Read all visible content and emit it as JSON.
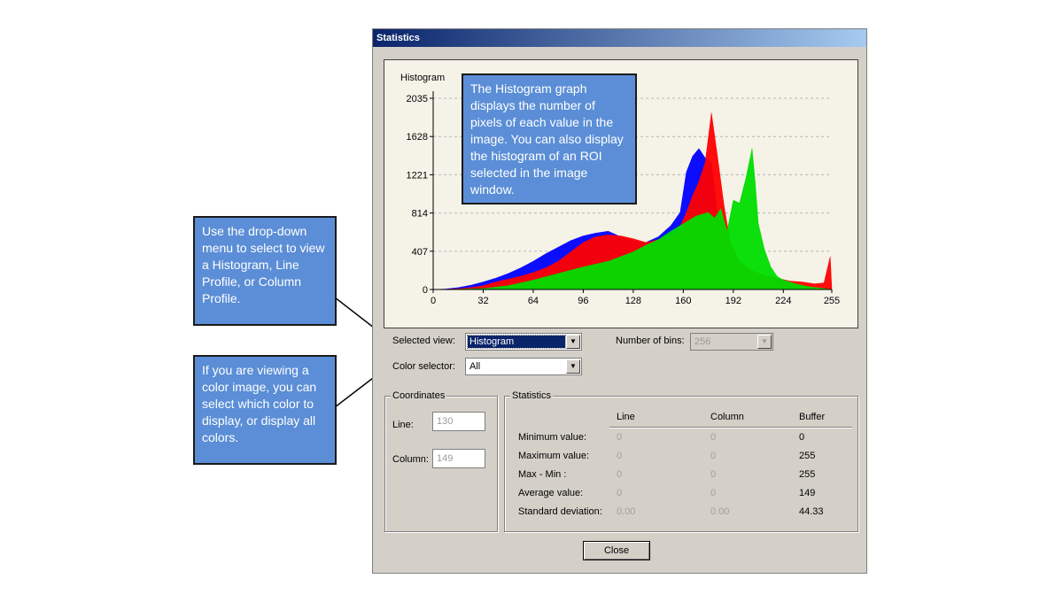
{
  "window": {
    "title": "Statistics"
  },
  "graph": {
    "title": "Histogram",
    "y_ticks": [
      "2035",
      "1628",
      "1221",
      "814",
      "407",
      "0"
    ],
    "x_ticks": [
      "0",
      "32",
      "64",
      "96",
      "128",
      "160",
      "192",
      "224",
      "255"
    ]
  },
  "chart_data": {
    "type": "area",
    "title": "Histogram",
    "xlim": [
      0,
      255
    ],
    "ylim": [
      0,
      2035
    ],
    "y_ticks": [
      0,
      407,
      814,
      1221,
      1628,
      2035
    ],
    "x_ticks": [
      0,
      32,
      64,
      96,
      128,
      160,
      192,
      224,
      255
    ],
    "grid": true,
    "series": [
      {
        "color": "#0000ff",
        "x": [
          0,
          8,
          16,
          24,
          32,
          40,
          48,
          56,
          64,
          72,
          80,
          88,
          96,
          104,
          112,
          120,
          128,
          136,
          144,
          152,
          158,
          162,
          166,
          170,
          174,
          178,
          182,
          186,
          190,
          196,
          204,
          212,
          220,
          228,
          236,
          244,
          250,
          255
        ],
        "values": [
          0,
          5,
          20,
          45,
          80,
          120,
          170,
          230,
          300,
          380,
          450,
          520,
          570,
          600,
          620,
          560,
          520,
          500,
          560,
          680,
          820,
          1250,
          1420,
          1500,
          1400,
          1350,
          750,
          500,
          300,
          180,
          120,
          80,
          60,
          40,
          20,
          10,
          5,
          0
        ]
      },
      {
        "color": "#ff0000",
        "x": [
          0,
          8,
          16,
          24,
          32,
          40,
          48,
          56,
          64,
          72,
          80,
          88,
          96,
          104,
          112,
          120,
          128,
          136,
          144,
          150,
          156,
          162,
          166,
          170,
          174,
          178,
          182,
          186,
          190,
          196,
          204,
          212,
          220,
          228,
          236,
          244,
          250,
          254,
          255
        ],
        "values": [
          0,
          2,
          8,
          20,
          40,
          80,
          110,
          140,
          180,
          230,
          300,
          400,
          500,
          560,
          580,
          570,
          540,
          500,
          530,
          560,
          600,
          820,
          1000,
          1150,
          1350,
          1880,
          1400,
          900,
          500,
          300,
          200,
          150,
          120,
          90,
          80,
          60,
          70,
          350,
          0
        ]
      },
      {
        "color": "#00dd00",
        "x": [
          0,
          16,
          32,
          48,
          64,
          80,
          96,
          112,
          128,
          136,
          144,
          152,
          160,
          168,
          176,
          180,
          184,
          188,
          192,
          196,
          200,
          204,
          206,
          208,
          212,
          216,
          220,
          224,
          232,
          240,
          255
        ],
        "values": [
          0,
          3,
          10,
          40,
          100,
          170,
          240,
          300,
          400,
          470,
          530,
          620,
          700,
          780,
          820,
          760,
          860,
          620,
          950,
          920,
          1180,
          1500,
          1140,
          700,
          420,
          240,
          140,
          100,
          60,
          30,
          0
        ]
      }
    ]
  },
  "tooltips": {
    "histogram_graph": "The Histogram graph displays the number of pixels of each value in the image. You can also display the histogram of an ROI selected in the image window.",
    "selected_view": "Use the drop-down menu to select to view a Histogram, Line Profile, or Column Profile.",
    "color_selector": "If you are viewing a color image, you can select which color to display, or display all colors."
  },
  "controls": {
    "selected_view_label": "Selected view:",
    "selected_view_value": "Histogram",
    "bins_label": "Number of bins:",
    "bins_value": "256",
    "color_selector_label": "Color selector:",
    "color_selector_value": "All"
  },
  "coordinates": {
    "title": "Coordinates",
    "line_label": "Line:",
    "line_value": "130",
    "column_label": "Column:",
    "column_value": "149"
  },
  "statistics": {
    "title": "Statistics",
    "headers": [
      "Line",
      "Column",
      "Buffer"
    ],
    "rows": [
      {
        "label": "Minimum value:",
        "line": "0",
        "column": "0",
        "buffer": "0"
      },
      {
        "label": "Maximum value:",
        "line": "0",
        "column": "0",
        "buffer": "255"
      },
      {
        "label": "Max - Min :",
        "line": "0",
        "column": "0",
        "buffer": "255"
      },
      {
        "label": "Average value:",
        "line": "0",
        "column": "0",
        "buffer": "149"
      },
      {
        "label": "Standard deviation:",
        "line": "0.00",
        "column": "0.00",
        "buffer": "44.33"
      }
    ]
  },
  "buttons": {
    "close": "Close"
  }
}
